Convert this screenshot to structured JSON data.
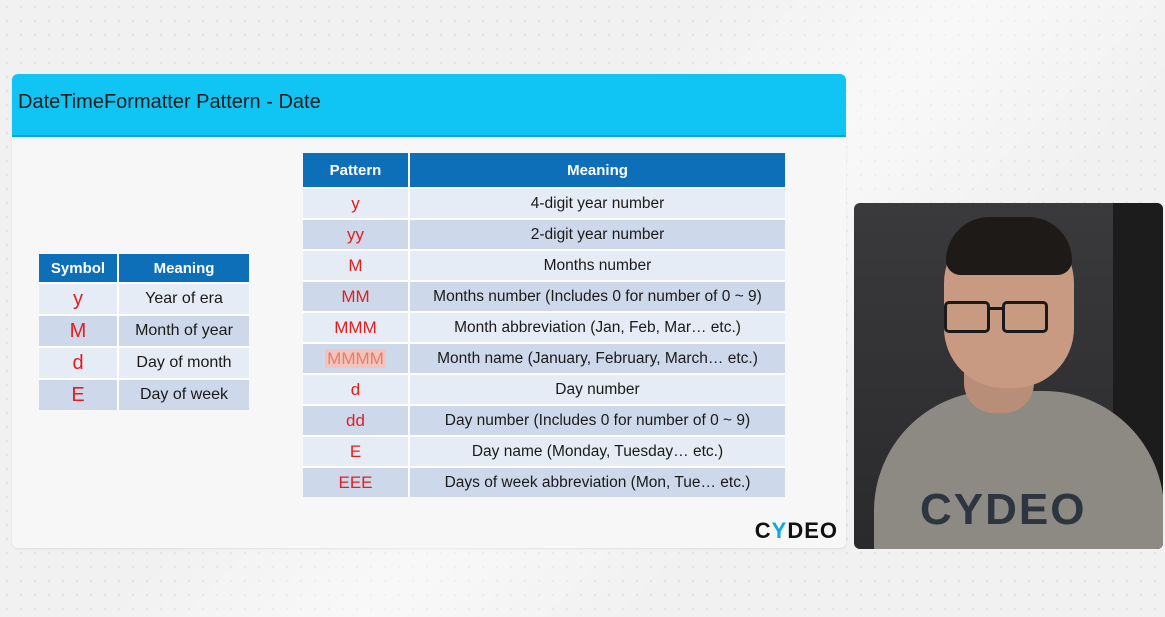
{
  "slide": {
    "title": "DateTimeFormatter Pattern - Date",
    "logo": {
      "prefix": "C",
      "accent": "Y",
      "suffix": "DEO"
    }
  },
  "symbol_table": {
    "headers": [
      "Symbol",
      "Meaning"
    ],
    "rows": [
      {
        "symbol": "y",
        "meaning": "Year of era"
      },
      {
        "symbol": "M",
        "meaning": "Month of year"
      },
      {
        "symbol": "d",
        "meaning": "Day of month"
      },
      {
        "symbol": "E",
        "meaning": "Day of week"
      }
    ]
  },
  "pattern_table": {
    "headers": [
      "Pattern",
      "Meaning"
    ],
    "rows": [
      {
        "pattern": "y",
        "meaning": "4-digit year number"
      },
      {
        "pattern": "yy",
        "meaning": "2-digit year number"
      },
      {
        "pattern": "M",
        "meaning": "Months number"
      },
      {
        "pattern": "MM",
        "meaning": "Months number (Includes 0 for number of 0 ~ 9)"
      },
      {
        "pattern": "MMM",
        "meaning": "Month abbreviation (Jan, Feb, Mar… etc.)"
      },
      {
        "pattern": "MMMM",
        "meaning": "Month name (January, February, March… etc.)"
      },
      {
        "pattern": "d",
        "meaning": "Day number"
      },
      {
        "pattern": "dd",
        "meaning": "Day number (Includes 0 for number of 0 ~ 9)"
      },
      {
        "pattern": "E",
        "meaning": "Day name (Monday, Tuesday… etc.)"
      },
      {
        "pattern": "EEE",
        "meaning": "Days of week abbreviation (Mon, Tue… etc.)"
      }
    ]
  },
  "video": {
    "shirt_text": {
      "prefix": "C",
      "accent": "Y",
      "suffix": "DEO"
    }
  },
  "colors": {
    "header_bar": "#10c4f4",
    "table_header": "#0c6fb8",
    "symbol_red": "#e01e1e",
    "logo_accent": "#10a8d8"
  }
}
